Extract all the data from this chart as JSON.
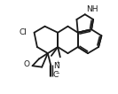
{
  "bg": "#ffffff",
  "lc": "#1a1a1a",
  "lw": 1.3,
  "fs": 6.5,
  "xlim": [
    0.0,
    1.0
  ],
  "ylim": [
    0.0,
    0.75
  ],
  "figsize": [
    1.33,
    1.06
  ],
  "dpi": 100
}
